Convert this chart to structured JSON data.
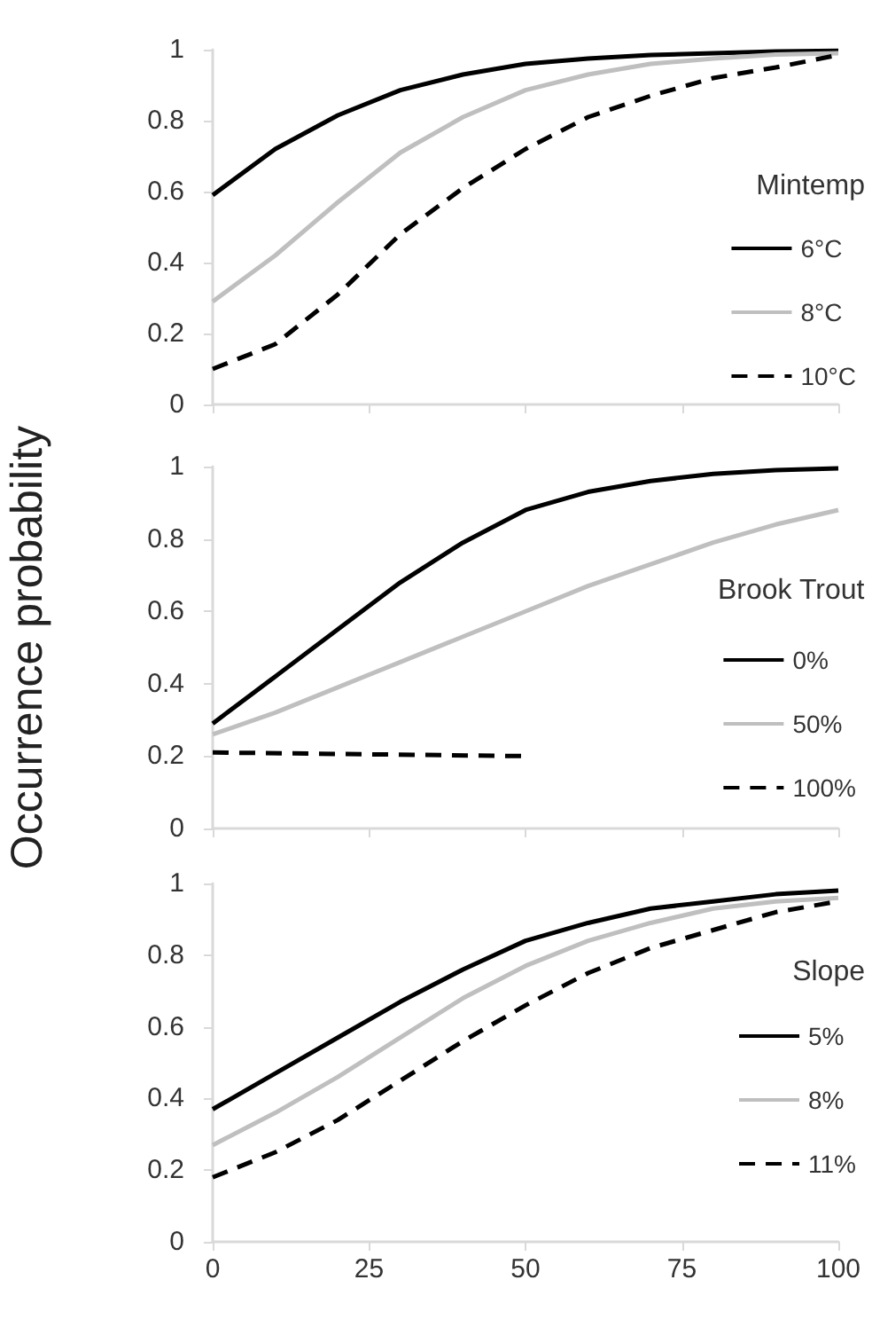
{
  "chart_data": [
    {
      "type": "line",
      "legend_title": "Mintemp",
      "legend": "right",
      "grid": false,
      "tick_labels": "y",
      "x": [
        0,
        10,
        20,
        30,
        40,
        50,
        60,
        70,
        80,
        90,
        100
      ],
      "xlim": [
        0,
        100
      ],
      "xticks": [
        0,
        25,
        50,
        75,
        100
      ],
      "ylim": [
        0,
        1
      ],
      "yticks": [
        0,
        0.2,
        0.4,
        0.6,
        0.8,
        1
      ],
      "series": [
        {
          "name": "6°C",
          "color": "#000000",
          "line_style": "solid",
          "values": [
            0.59,
            0.72,
            0.815,
            0.886,
            0.93,
            0.96,
            0.975,
            0.985,
            0.99,
            0.995,
            0.997
          ]
        },
        {
          "name": "8°C",
          "color": "#bfbfbf",
          "line_style": "solid",
          "values": [
            0.29,
            0.42,
            0.57,
            0.71,
            0.81,
            0.886,
            0.93,
            0.96,
            0.975,
            0.986,
            0.99
          ]
        },
        {
          "name": "10°C",
          "color": "#000000",
          "line_style": "dashed",
          "values": [
            0.1,
            0.17,
            0.31,
            0.48,
            0.61,
            0.72,
            0.81,
            0.87,
            0.92,
            0.95,
            0.985
          ]
        }
      ]
    },
    {
      "type": "line",
      "ylabel": "Occurrence probability",
      "legend_title": "Brook Trout",
      "legend": "right",
      "grid": false,
      "tick_labels": "y",
      "x": [
        0,
        10,
        20,
        30,
        40,
        50,
        60,
        70,
        80,
        90,
        100
      ],
      "xlim": [
        0,
        100
      ],
      "xticks": [
        0,
        25,
        50,
        75,
        100
      ],
      "ylim": [
        0,
        1
      ],
      "yticks": [
        0,
        0.2,
        0.4,
        0.6,
        0.8,
        1
      ],
      "series": [
        {
          "name": "0%",
          "color": "#000000",
          "line_style": "solid",
          "values": [
            0.29,
            0.42,
            0.55,
            0.68,
            0.79,
            0.88,
            0.93,
            0.96,
            0.98,
            0.99,
            0.995
          ]
        },
        {
          "name": "50%",
          "color": "#bfbfbf",
          "line_style": "solid",
          "values": [
            0.26,
            0.32,
            0.39,
            0.46,
            0.53,
            0.6,
            0.67,
            0.73,
            0.79,
            0.84,
            0.88
          ]
        },
        {
          "name": "100%",
          "color": "#000000",
          "line_style": "dashed",
          "x": [
            0,
            50
          ],
          "values": [
            0.21,
            0.2
          ]
        }
      ]
    },
    {
      "type": "line",
      "legend_title": "Slope",
      "legend": "right",
      "grid": false,
      "x": [
        0,
        10,
        20,
        30,
        40,
        50,
        60,
        70,
        80,
        90,
        100
      ],
      "xlim": [
        0,
        100
      ],
      "xticks": [
        0,
        25,
        50,
        75,
        100
      ],
      "ylim": [
        0,
        1
      ],
      "yticks": [
        0,
        0.2,
        0.4,
        0.6,
        0.8,
        1
      ],
      "series": [
        {
          "name": "5%",
          "color": "#000000",
          "line_style": "solid",
          "values": [
            0.37,
            0.47,
            0.57,
            0.67,
            0.76,
            0.84,
            0.89,
            0.93,
            0.95,
            0.97,
            0.98
          ]
        },
        {
          "name": "8%",
          "color": "#bfbfbf",
          "line_style": "solid",
          "values": [
            0.27,
            0.36,
            0.46,
            0.57,
            0.68,
            0.77,
            0.84,
            0.89,
            0.93,
            0.95,
            0.96
          ]
        },
        {
          "name": "11%",
          "color": "#000000",
          "line_style": "dashed",
          "values": [
            0.18,
            0.25,
            0.34,
            0.45,
            0.56,
            0.66,
            0.75,
            0.82,
            0.87,
            0.92,
            0.95
          ]
        }
      ]
    }
  ]
}
